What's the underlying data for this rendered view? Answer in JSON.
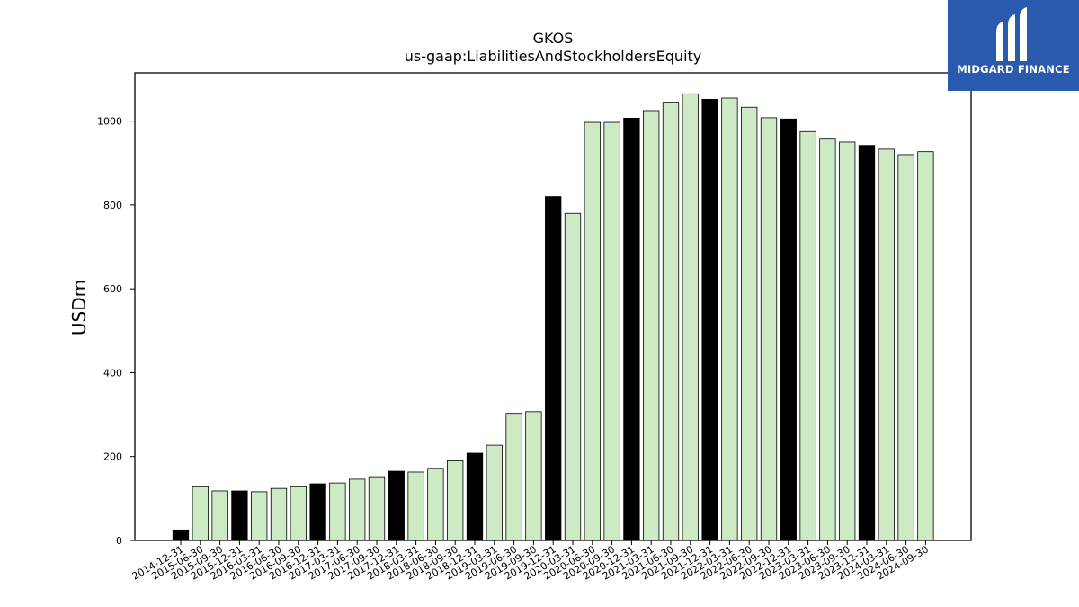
{
  "logo": {
    "text": "MIDGARD FINANCE"
  },
  "chart_data": {
    "type": "bar",
    "title": "GKOS",
    "subtitle": "us-gaap:LiabilitiesAndStockholdersEquity",
    "xlabel": "",
    "ylabel": "USDm",
    "ylim": [
      0,
      1115
    ],
    "yticks": [
      0,
      200,
      400,
      600,
      800,
      1000
    ],
    "grid": false,
    "colors": {
      "year_end": "#000000",
      "interim": "#cdeac4",
      "edge": "#000000"
    },
    "categories": [
      "2014-12-31",
      "2015-06-30",
      "2015-09-30",
      "2015-12-31",
      "2016-03-31",
      "2016-06-30",
      "2016-09-30",
      "2016-12-31",
      "2017-03-31",
      "2017-06-30",
      "2017-09-30",
      "2017-12-31",
      "2018-03-31",
      "2018-06-30",
      "2018-09-30",
      "2018-12-31",
      "2019-03-31",
      "2019-06-30",
      "2019-09-30",
      "2019-12-31",
      "2020-03-31",
      "2020-06-30",
      "2020-09-30",
      "2020-12-31",
      "2021-03-31",
      "2021-06-30",
      "2021-09-30",
      "2021-12-31",
      "2022-03-31",
      "2022-06-30",
      "2022-09-30",
      "2022-12-31",
      "2023-03-31",
      "2023-06-30",
      "2023-09-30",
      "2023-12-31",
      "2024-03-31",
      "2024-06-30",
      "2024-09-30"
    ],
    "values": [
      25,
      128,
      118,
      118,
      116,
      124,
      128,
      135,
      137,
      146,
      152,
      165,
      163,
      172,
      190,
      208,
      227,
      303,
      307,
      820,
      780,
      997,
      997,
      1007,
      1025,
      1045,
      1065,
      1052,
      1055,
      1033,
      1008,
      1005,
      975,
      957,
      950,
      942,
      933,
      920,
      927
    ]
  }
}
